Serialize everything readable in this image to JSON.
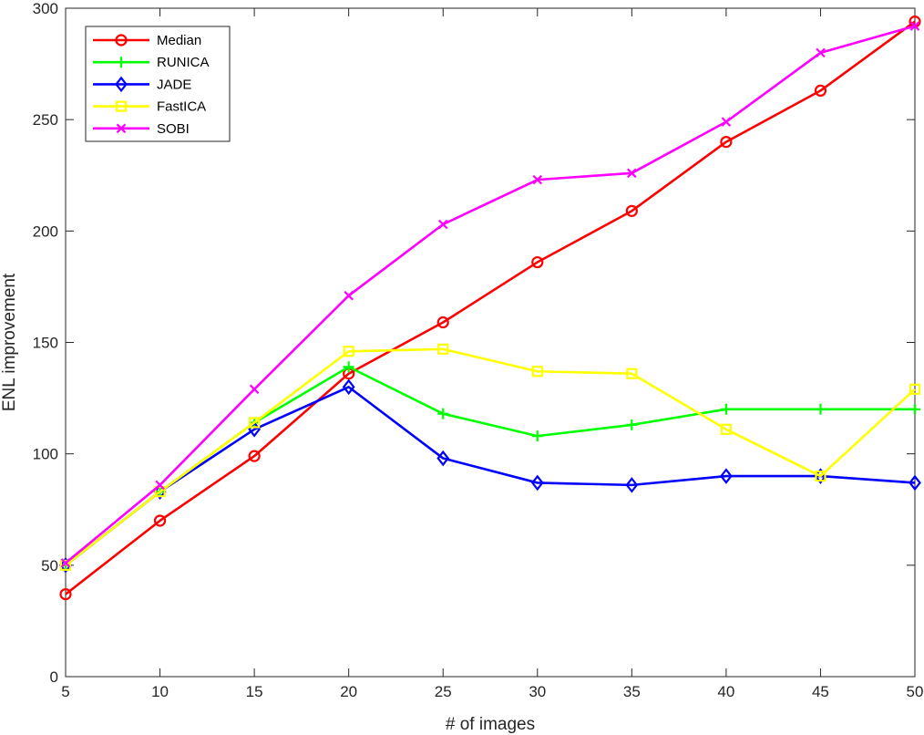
{
  "chart_data": {
    "type": "line",
    "title": "",
    "xlabel": "# of images",
    "ylabel": "ENL improvement",
    "x": [
      5,
      10,
      15,
      20,
      25,
      30,
      35,
      40,
      45,
      50
    ],
    "xlim": [
      5,
      50
    ],
    "ylim": [
      0,
      300
    ],
    "xticks": [
      5,
      10,
      15,
      20,
      25,
      30,
      35,
      40,
      45,
      50
    ],
    "yticks": [
      0,
      50,
      100,
      150,
      200,
      250,
      300
    ],
    "grid": false,
    "legend_position": "top-left",
    "series": [
      {
        "name": "Median",
        "color": "#ff0000",
        "marker": "circle",
        "values": [
          37,
          70,
          99,
          136,
          159,
          186,
          209,
          240,
          263,
          294
        ]
      },
      {
        "name": "RUNICA",
        "color": "#00ff00",
        "marker": "plus",
        "values": [
          50,
          83,
          114,
          139,
          118,
          108,
          113,
          120,
          120,
          120
        ]
      },
      {
        "name": "JADE",
        "color": "#0000ff",
        "marker": "diamond",
        "values": [
          50,
          83,
          111,
          130,
          98,
          87,
          86,
          90,
          90,
          87
        ]
      },
      {
        "name": "FastICA",
        "color": "#ffff00",
        "marker": "square",
        "values": [
          50,
          83,
          114,
          146,
          147,
          137,
          136,
          111,
          90,
          129
        ]
      },
      {
        "name": "SOBI",
        "color": "#ff00ff",
        "marker": "x",
        "values": [
          51,
          86,
          129,
          171,
          203,
          223,
          226,
          249,
          280,
          292
        ]
      }
    ]
  }
}
